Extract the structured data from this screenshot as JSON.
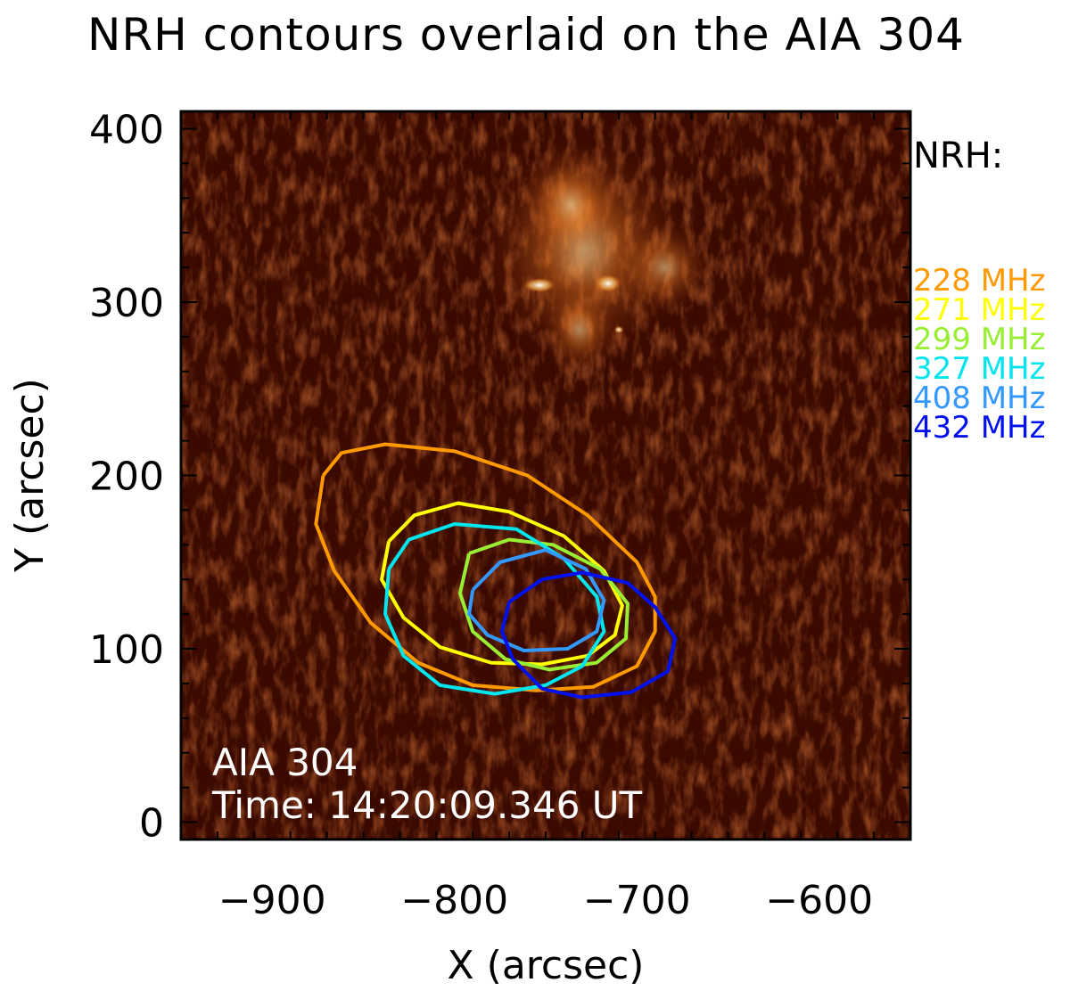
{
  "chart_data": {
    "type": "contour",
    "title": "NRH contours overlaid on the AIA 304",
    "xlabel": "X (arcsec)",
    "ylabel": "Y (arcsec)",
    "xlim": [
      -950,
      -550
    ],
    "ylim": [
      -10,
      410
    ],
    "x_ticks": [
      -900,
      -800,
      -700,
      -600
    ],
    "y_ticks": [
      0,
      100,
      200,
      300,
      400
    ],
    "x_tick_labels": [
      "−900",
      "−800",
      "−700",
      "−600"
    ],
    "y_tick_labels": [
      "0",
      "100",
      "200",
      "300",
      "400"
    ],
    "image_label": "AIA 304",
    "time_label": "Time: 14:20:09.346 UT",
    "legend_title": "NRH:",
    "legend_placement": "right",
    "series": [
      {
        "name": "228 MHz",
        "color": "#ff9900",
        "points": [
          [
            -872,
            200
          ],
          [
            -862,
            213
          ],
          [
            -838,
            218
          ],
          [
            -800,
            214
          ],
          [
            -760,
            200
          ],
          [
            -727,
            177
          ],
          [
            -700,
            150
          ],
          [
            -690,
            130
          ],
          [
            -690,
            110
          ],
          [
            -700,
            90
          ],
          [
            -724,
            78
          ],
          [
            -755,
            76
          ],
          [
            -790,
            79
          ],
          [
            -820,
            92
          ],
          [
            -846,
            115
          ],
          [
            -866,
            145
          ],
          [
            -876,
            172
          ],
          [
            -872,
            200
          ]
        ]
      },
      {
        "name": "271 MHz",
        "color": "#ffff00",
        "points": [
          [
            -836,
            162
          ],
          [
            -822,
            177
          ],
          [
            -798,
            184
          ],
          [
            -770,
            179
          ],
          [
            -740,
            165
          ],
          [
            -718,
            145
          ],
          [
            -708,
            125
          ],
          [
            -712,
            108
          ],
          [
            -727,
            96
          ],
          [
            -752,
            91
          ],
          [
            -780,
            92
          ],
          [
            -808,
            101
          ],
          [
            -828,
            118
          ],
          [
            -840,
            140
          ],
          [
            -836,
            162
          ]
        ]
      },
      {
        "name": "299 MHz",
        "color": "#99ee33",
        "points": [
          [
            -792,
            155
          ],
          [
            -770,
            163
          ],
          [
            -746,
            160
          ],
          [
            -720,
            146
          ],
          [
            -705,
            126
          ],
          [
            -706,
            106
          ],
          [
            -722,
            92
          ],
          [
            -748,
            88
          ],
          [
            -772,
            94
          ],
          [
            -790,
            110
          ],
          [
            -797,
            132
          ],
          [
            -792,
            155
          ]
        ]
      },
      {
        "name": "327 MHz",
        "color": "#00e5ee",
        "points": [
          [
            -836,
            146
          ],
          [
            -825,
            163
          ],
          [
            -800,
            172
          ],
          [
            -766,
            169
          ],
          [
            -740,
            152
          ],
          [
            -722,
            130
          ],
          [
            -718,
            110
          ],
          [
            -730,
            90
          ],
          [
            -750,
            79
          ],
          [
            -778,
            74
          ],
          [
            -808,
            79
          ],
          [
            -828,
            96
          ],
          [
            -838,
            120
          ],
          [
            -836,
            146
          ]
        ]
      },
      {
        "name": "408 MHz",
        "color": "#3399ff",
        "points": [
          [
            -790,
            134
          ],
          [
            -775,
            150
          ],
          [
            -750,
            157
          ],
          [
            -728,
            146
          ],
          [
            -718,
            128
          ],
          [
            -722,
            110
          ],
          [
            -738,
            100
          ],
          [
            -762,
            99
          ],
          [
            -782,
            108
          ],
          [
            -792,
            120
          ],
          [
            -790,
            134
          ]
        ]
      },
      {
        "name": "432 MHz",
        "color": "#0011ee",
        "points": [
          [
            -770,
            127
          ],
          [
            -752,
            140
          ],
          [
            -730,
            144
          ],
          [
            -705,
            138
          ],
          [
            -690,
            124
          ],
          [
            -679,
            106
          ],
          [
            -683,
            87
          ],
          [
            -703,
            75
          ],
          [
            -730,
            72
          ],
          [
            -752,
            77
          ],
          [
            -768,
            94
          ],
          [
            -774,
            110
          ],
          [
            -770,
            127
          ]
        ]
      }
    ]
  },
  "colors": {
    "image_background": "#3a0a00",
    "image_emission": "#ffd080",
    "axes_frame": "#000000",
    "annotation_text": "#ffffff"
  }
}
